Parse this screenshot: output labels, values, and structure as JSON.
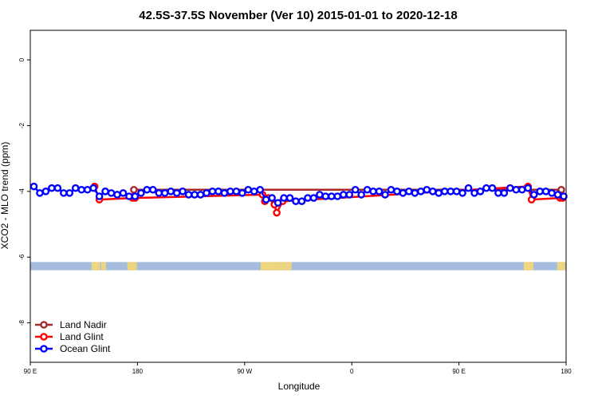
{
  "chart_data": {
    "type": "line",
    "title": "42.5S-37.5S November (Ver 10)   2015-01-01 to 2020-12-18",
    "xlabel": "Longitude",
    "ylabel": "XCO2 - MLO trend (ppm)",
    "x_ticks": [
      {
        "value": 90,
        "label": "90 E"
      },
      {
        "value": 180,
        "label": "180"
      },
      {
        "value": 270,
        "label": "90 W"
      },
      {
        "value": 360,
        "label": "0"
      },
      {
        "value": 450,
        "label": "90 E"
      },
      {
        "value": 540,
        "label": "180"
      }
    ],
    "y_ticks": [
      0,
      -2,
      -4,
      -6,
      -8
    ],
    "xlim": [
      90,
      540
    ],
    "ylim": [
      -9.2,
      0.9
    ],
    "legend_position": "bottom-left",
    "colors": {
      "land_nadir": "#a52a2a",
      "land_glint": "#ff0000",
      "ocean_glint": "#0000ff",
      "ocean_band": "#a5bcdf",
      "land_band": "#f2d77a"
    },
    "land_ocean_band": {
      "y_range": [
        -6.15,
        -6.4
      ],
      "land_longitudes": [
        142,
        143,
        144,
        145,
        146,
        147,
        148,
        150,
        151,
        152,
        153,
        172,
        173,
        174,
        175,
        176,
        177,
        178,
        179,
        284,
        285,
        286,
        287,
        288,
        289,
        290,
        291,
        292,
        293,
        294,
        295,
        296,
        297,
        298,
        299,
        300,
        301,
        302,
        303,
        304,
        305,
        306,
        307,
        308,
        309,
        505,
        506,
        507,
        508,
        509,
        510,
        511,
        512,
        533,
        534,
        535,
        536,
        537,
        538,
        539
      ]
    },
    "series": [
      {
        "name": "Land Nadir",
        "x": [
          177,
          536
        ],
        "y": [
          -3.95,
          -3.95
        ]
      },
      {
        "name": "Land Glint",
        "x": [
          144,
          148,
          176,
          177,
          178,
          285,
          287,
          290,
          295,
          297,
          302,
          508,
          511,
          535,
          537
        ],
        "y": [
          -3.85,
          -4.25,
          -4.2,
          -4.15,
          -4.2,
          -4.1,
          -4.3,
          -4.2,
          -4.4,
          -4.65,
          -4.3,
          -3.85,
          -4.25,
          -4.2,
          -4.2
        ]
      },
      {
        "name": "Ocean Glint",
        "x": [
          93,
          98,
          103,
          108,
          113,
          118,
          123,
          128,
          133,
          138,
          143,
          148,
          153,
          158,
          163,
          168,
          173,
          178,
          183,
          188,
          193,
          198,
          203,
          208,
          213,
          218,
          223,
          228,
          233,
          238,
          243,
          248,
          253,
          258,
          263,
          268,
          273,
          278,
          283,
          288,
          293,
          298,
          303,
          308,
          313,
          318,
          323,
          328,
          333,
          338,
          343,
          348,
          353,
          358,
          363,
          368,
          373,
          378,
          383,
          388,
          393,
          398,
          403,
          408,
          413,
          418,
          423,
          428,
          433,
          438,
          443,
          448,
          453,
          458,
          463,
          468,
          473,
          478,
          483,
          488,
          493,
          498,
          503,
          508,
          513,
          518,
          523,
          528,
          533,
          538
        ],
        "y": [
          -3.85,
          -4.05,
          -4.0,
          -3.9,
          -3.9,
          -4.05,
          -4.05,
          -3.9,
          -3.95,
          -3.95,
          -3.9,
          -4.15,
          -4.0,
          -4.05,
          -4.1,
          -4.05,
          -4.15,
          -4.15,
          -4.05,
          -3.95,
          -3.95,
          -4.05,
          -4.05,
          -4.0,
          -4.05,
          -4.0,
          -4.1,
          -4.1,
          -4.1,
          -4.05,
          -4.0,
          -4.0,
          -4.05,
          -4.0,
          -4.0,
          -4.05,
          -3.95,
          -4.0,
          -3.95,
          -4.25,
          -4.2,
          -4.35,
          -4.2,
          -4.2,
          -4.3,
          -4.3,
          -4.2,
          -4.2,
          -4.1,
          -4.15,
          -4.15,
          -4.15,
          -4.1,
          -4.1,
          -3.95,
          -4.1,
          -3.95,
          -4.0,
          -4.0,
          -4.1,
          -3.95,
          -4.0,
          -4.05,
          -4.0,
          -4.05,
          -4.0,
          -3.95,
          -4.0,
          -4.05,
          -4.0,
          -4.0,
          -4.0,
          -4.05,
          -3.9,
          -4.05,
          -4.0,
          -3.9,
          -3.9,
          -4.05,
          -4.05,
          -3.9,
          -3.95,
          -3.95,
          -3.9,
          -4.1,
          -4.0,
          -4.0,
          -4.05,
          -4.1,
          -4.15
        ]
      }
    ]
  }
}
